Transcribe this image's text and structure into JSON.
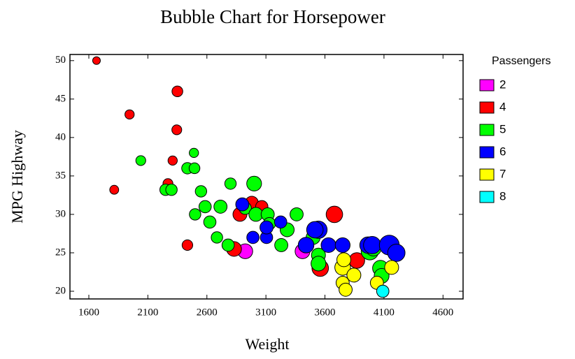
{
  "chart_data": {
    "type": "bubble",
    "title": "Bubble Chart for Horsepower",
    "x_label": "Weight",
    "y_label": "MPG Highway",
    "legend_title": "Passengers",
    "xlim": [
      1440,
      4770
    ],
    "ylim": [
      19,
      50.8
    ],
    "xticks": [
      1600,
      2100,
      2600,
      3100,
      3600,
      4100,
      4600
    ],
    "yticks": [
      20,
      25,
      30,
      35,
      40,
      45,
      50
    ],
    "series": [
      {
        "name": "2",
        "color": "#ff00ff",
        "x": [
          2925,
          3410
        ],
        "y": [
          25.2,
          25.2
        ],
        "sizes": [
          140,
          140
        ]
      },
      {
        "name": "4",
        "color": "#ff0000",
        "x": [
          1665,
          1815,
          1945,
          2350,
          2345,
          2310,
          2270,
          2435,
          2880,
          2830,
          2980,
          3065,
          3680,
          3560,
          3870
        ],
        "y": [
          50,
          33.2,
          43,
          46,
          41,
          37,
          34,
          26,
          30,
          25.5,
          31.5,
          31,
          30,
          23,
          24
        ],
        "sizes": [
          55,
          70,
          74,
          92,
          81,
          74,
          82,
          90,
          130,
          140,
          120,
          110,
          160,
          160,
          150
        ]
      },
      {
        "name": "5",
        "color": "#00ff00",
        "x": [
          2040,
          2250,
          2300,
          2490,
          2435,
          2495,
          2550,
          2500,
          2585,
          2625,
          2715,
          2685,
          2780,
          2800,
          3000,
          2925,
          3015,
          3115,
          3130,
          3230,
          3280,
          3360,
          3545,
          3545,
          3980,
          4070,
          4080,
          4010,
          3500
        ],
        "y": [
          37,
          33.2,
          33.2,
          38,
          36,
          36,
          33,
          30,
          31,
          29,
          31,
          27,
          26,
          34,
          34,
          30.8,
          30,
          30,
          28.8,
          26,
          28,
          30,
          24.7,
          23.6,
          25.2,
          23,
          22,
          25.6,
          27
        ],
        "sizes": [
          81,
          100,
          100,
          74,
          100,
          92,
          100,
          100,
          110,
          110,
          120,
          100,
          110,
          100,
          140,
          110,
          130,
          120,
          110,
          120,
          130,
          120,
          130,
          140,
          170,
          150,
          140,
          150,
          130
        ]
      },
      {
        "name": "6",
        "color": "#0000ff",
        "x": [
          2900,
          2990,
          3105,
          3105,
          3225,
          3440,
          3545,
          3515,
          3630,
          3750,
          3965,
          4000,
          4145,
          4205
        ],
        "y": [
          31.3,
          27,
          27,
          28.3,
          29,
          26,
          28,
          28,
          26,
          26,
          26,
          26,
          26,
          25
        ],
        "sizes": [
          120,
          110,
          110,
          120,
          110,
          150,
          170,
          160,
          140,
          140,
          160,
          170,
          200,
          170
        ]
      },
      {
        "name": "7",
        "color": "#ffff00",
        "x": [
          3750,
          3750,
          3775,
          3845,
          4040,
          4165,
          3760
        ],
        "y": [
          23.1,
          21.1,
          20.2,
          22.1,
          21.1,
          23.1,
          24.1
        ],
        "sizes": [
          150,
          120,
          120,
          130,
          120,
          130,
          130
        ]
      },
      {
        "name": "8",
        "color": "#00ffff",
        "x": [
          4090
        ],
        "y": [
          20
        ],
        "sizes": [
          110
        ]
      }
    ]
  }
}
